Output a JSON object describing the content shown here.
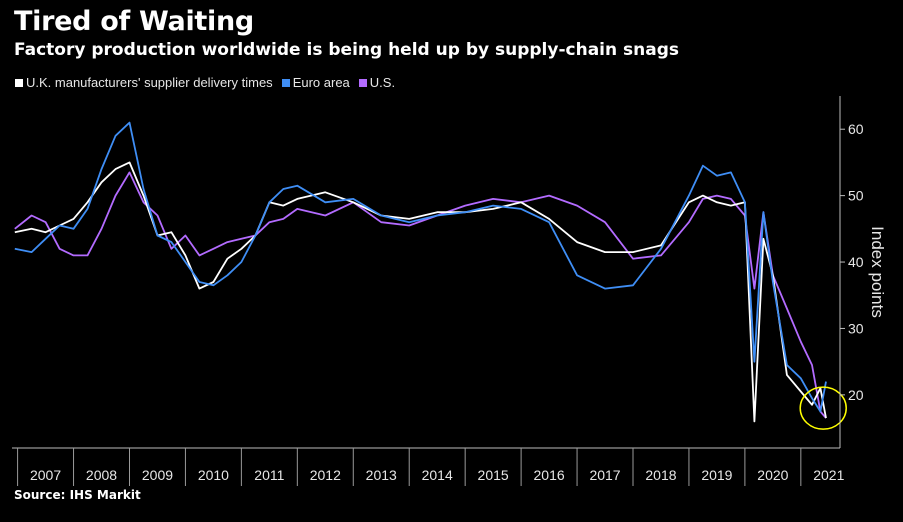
{
  "header": {
    "title": "Tired of Waiting",
    "subtitle": "Factory production worldwide is being held up by supply-chain snags"
  },
  "source": "Source: IHS Markit",
  "chart_data": {
    "type": "line",
    "title": "Tired of Waiting",
    "subtitle": "Factory production worldwide is being held up by supply-chain snags",
    "xlabel": "",
    "ylabel": "Index points",
    "ylim": [
      12,
      65
    ],
    "xlim": [
      2006.9,
      2021.7
    ],
    "yticks": [
      20,
      30,
      40,
      50,
      60
    ],
    "xticks": [
      "2007",
      "2008",
      "2009",
      "2010",
      "2011",
      "2012",
      "2013",
      "2014",
      "2015",
      "2016",
      "2017",
      "2018",
      "2019",
      "2020",
      "2021"
    ],
    "grid": false,
    "legend_position": "top-left",
    "highlight": {
      "shape": "circle",
      "color": "#ffff00",
      "x": 2021.4,
      "y": 18
    },
    "series": [
      {
        "name": "U.K. manufacturers' supplier delivery times",
        "color": "#ffffff",
        "x": [
          2006.95,
          2007.25,
          2007.5,
          2007.75,
          2008.0,
          2008.25,
          2008.5,
          2008.75,
          2009.0,
          2009.25,
          2009.5,
          2009.75,
          2010.0,
          2010.25,
          2010.5,
          2010.75,
          2011.0,
          2011.25,
          2011.5,
          2011.75,
          2012.0,
          2012.5,
          2013.0,
          2013.5,
          2014.0,
          2014.5,
          2015.0,
          2015.5,
          2016.0,
          2016.5,
          2017.0,
          2017.5,
          2018.0,
          2018.5,
          2019.0,
          2019.25,
          2019.5,
          2019.75,
          2020.0,
          2020.17,
          2020.33,
          2020.5,
          2020.75,
          2021.0,
          2021.2,
          2021.35,
          2021.45
        ],
        "y": [
          44.5,
          45.0,
          44.5,
          45.5,
          46.5,
          49.0,
          52.0,
          54.0,
          55.0,
          50.0,
          44.0,
          44.5,
          41.0,
          36.0,
          37.0,
          40.5,
          42.0,
          44.0,
          49.0,
          48.5,
          49.5,
          50.5,
          49.0,
          47.0,
          46.5,
          47.5,
          47.5,
          48.0,
          49.0,
          46.5,
          43.0,
          41.5,
          41.5,
          42.5,
          49.0,
          50.0,
          49.0,
          48.5,
          49.0,
          16.0,
          43.5,
          38.0,
          23.0,
          20.5,
          18.5,
          21.0,
          16.5
        ]
      },
      {
        "name": "Euro area",
        "color": "#3f8ef5",
        "x": [
          2006.95,
          2007.25,
          2007.5,
          2007.75,
          2008.0,
          2008.25,
          2008.5,
          2008.75,
          2009.0,
          2009.25,
          2009.5,
          2009.75,
          2010.0,
          2010.25,
          2010.5,
          2010.75,
          2011.0,
          2011.25,
          2011.5,
          2011.75,
          2012.0,
          2012.5,
          2013.0,
          2013.5,
          2014.0,
          2014.5,
          2015.0,
          2015.5,
          2016.0,
          2016.5,
          2017.0,
          2017.5,
          2018.0,
          2018.5,
          2019.0,
          2019.25,
          2019.5,
          2019.75,
          2020.0,
          2020.17,
          2020.33,
          2020.5,
          2020.75,
          2021.0,
          2021.2,
          2021.35,
          2021.45
        ],
        "y": [
          42.0,
          41.5,
          43.5,
          45.5,
          45.0,
          48.0,
          54.0,
          59.0,
          61.0,
          51.0,
          44.0,
          43.0,
          40.0,
          37.0,
          36.5,
          38.0,
          40.0,
          44.0,
          49.0,
          51.0,
          51.5,
          49.0,
          49.5,
          47.0,
          46.0,
          47.0,
          47.5,
          48.5,
          48.0,
          46.0,
          38.0,
          36.0,
          36.5,
          42.0,
          50.0,
          54.5,
          53.0,
          53.5,
          49.0,
          25.0,
          47.5,
          37.0,
          24.5,
          22.5,
          19.5,
          17.5,
          22.0
        ]
      },
      {
        "name": "U.S.",
        "color": "#b36bff",
        "x": [
          2006.95,
          2007.25,
          2007.5,
          2007.75,
          2008.0,
          2008.25,
          2008.5,
          2008.75,
          2009.0,
          2009.25,
          2009.5,
          2009.75,
          2010.0,
          2010.25,
          2010.5,
          2010.75,
          2011.0,
          2011.25,
          2011.5,
          2011.75,
          2012.0,
          2012.5,
          2013.0,
          2013.5,
          2014.0,
          2014.5,
          2015.0,
          2015.5,
          2016.0,
          2016.5,
          2017.0,
          2017.5,
          2018.0,
          2018.5,
          2019.0,
          2019.25,
          2019.5,
          2019.75,
          2020.0,
          2020.17,
          2020.33,
          2020.5,
          2020.75,
          2021.0,
          2021.2,
          2021.35,
          2021.45
        ],
        "y": [
          45.0,
          47.0,
          46.0,
          42.0,
          41.0,
          41.0,
          45.0,
          50.0,
          53.5,
          49.0,
          47.0,
          42.0,
          44.0,
          41.0,
          42.0,
          43.0,
          43.5,
          44.0,
          46.0,
          46.5,
          48.0,
          47.0,
          49.0,
          46.0,
          45.5,
          47.0,
          48.5,
          49.5,
          49.0,
          50.0,
          48.5,
          46.0,
          40.5,
          41.0,
          46.0,
          49.5,
          50.0,
          49.5,
          47.0,
          36.0,
          47.5,
          38.0,
          33.0,
          28.0,
          24.5,
          17.5,
          16.5
        ]
      }
    ]
  }
}
